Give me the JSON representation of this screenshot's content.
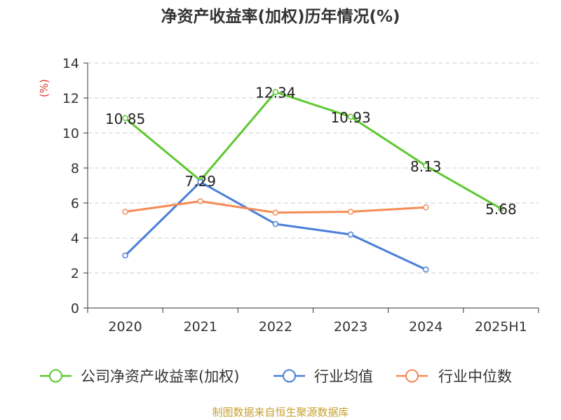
{
  "chart_data": {
    "type": "line",
    "title": "净资产收益率(加权)历年情况(%)",
    "ylabel": "(%)",
    "xlabel": "",
    "categories": [
      "2020",
      "2021",
      "2022",
      "2023",
      "2024",
      "2025H1"
    ],
    "ylim": [
      0,
      14
    ],
    "yticks": [
      "0",
      "2",
      "4",
      "6",
      "8",
      "10",
      "12",
      "14"
    ],
    "grid": true,
    "legend_position": "bottom",
    "series": [
      {
        "name": "公司净资产收益率(加权)",
        "color": "#5dc82f",
        "values": [
          10.85,
          7.29,
          12.34,
          10.93,
          8.13,
          5.68
        ],
        "labels": [
          "10.85",
          "7.29",
          "12.34",
          "10.93",
          "8.13",
          "5.68"
        ]
      },
      {
        "name": "行业均值",
        "color": "#4a7fd8",
        "values": [
          3.0,
          7.2,
          4.8,
          4.2,
          2.2,
          null
        ]
      },
      {
        "name": "行业中位数",
        "color": "#f58b55",
        "values": [
          5.5,
          6.1,
          5.45,
          5.5,
          5.75,
          null
        ]
      }
    ],
    "source": "制图数据来自恒生聚源数据库"
  }
}
